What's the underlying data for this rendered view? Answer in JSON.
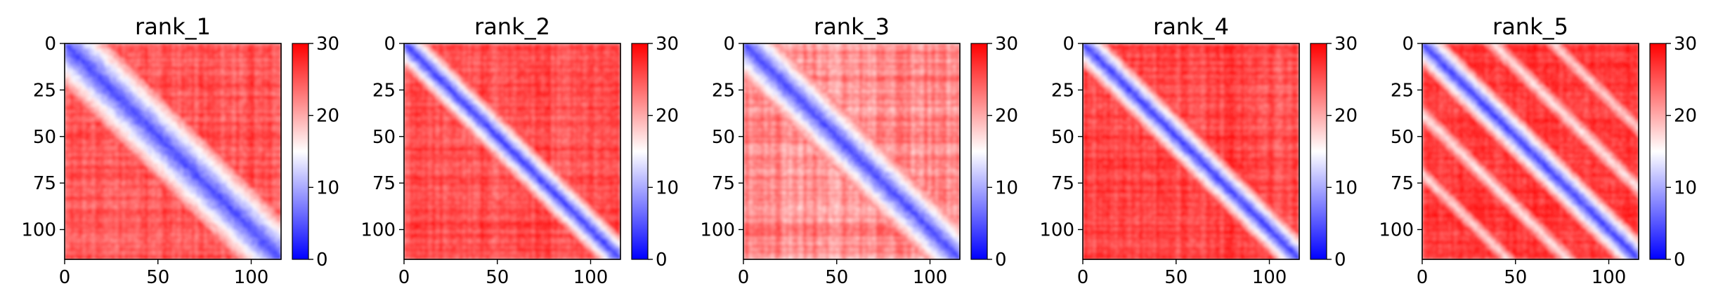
{
  "chart_data": [
    {
      "type": "heatmap",
      "title": "rank_1",
      "pattern": "wide-diagonal",
      "xlim": [
        0,
        116
      ],
      "ylim": [
        116,
        0
      ],
      "xticks": [
        0,
        50,
        100
      ],
      "xtick_labels": [
        "0",
        "50",
        "100"
      ],
      "yticks": [
        0,
        25,
        50,
        75,
        100
      ],
      "ytick_labels": [
        "0",
        "25",
        "50",
        "75",
        "100"
      ],
      "colorbar": {
        "range": [
          0,
          30
        ],
        "ticks": [
          0,
          10,
          20,
          30
        ],
        "tick_labels": [
          "0",
          "10",
          "20",
          "30"
        ],
        "colormap": "bwr"
      }
    },
    {
      "type": "heatmap",
      "title": "rank_2",
      "pattern": "narrow-diagonal",
      "xlim": [
        0,
        116
      ],
      "ylim": [
        116,
        0
      ],
      "xticks": [
        0,
        50,
        100
      ],
      "xtick_labels": [
        "0",
        "50",
        "100"
      ],
      "yticks": [
        0,
        25,
        50,
        75,
        100
      ],
      "ytick_labels": [
        "0",
        "25",
        "50",
        "75",
        "100"
      ],
      "colorbar": {
        "range": [
          0,
          30
        ],
        "ticks": [
          0,
          10,
          20,
          30
        ],
        "tick_labels": [
          "0",
          "10",
          "20",
          "30"
        ],
        "colormap": "bwr"
      }
    },
    {
      "type": "heatmap",
      "title": "rank_3",
      "pattern": "medium-diagonal",
      "xlim": [
        0,
        116
      ],
      "ylim": [
        116,
        0
      ],
      "xticks": [
        0,
        50,
        100
      ],
      "xtick_labels": [
        "0",
        "50",
        "100"
      ],
      "yticks": [
        0,
        25,
        50,
        75,
        100
      ],
      "ytick_labels": [
        "0",
        "25",
        "50",
        "75",
        "100"
      ],
      "colorbar": {
        "range": [
          0,
          30
        ],
        "ticks": [
          0,
          10,
          20,
          30
        ],
        "tick_labels": [
          "0",
          "10",
          "20",
          "30"
        ],
        "colormap": "bwr"
      }
    },
    {
      "type": "heatmap",
      "title": "rank_4",
      "pattern": "narrow-diagonal",
      "xlim": [
        0,
        116
      ],
      "ylim": [
        116,
        0
      ],
      "xticks": [
        0,
        50,
        100
      ],
      "xtick_labels": [
        "0",
        "50",
        "100"
      ],
      "yticks": [
        0,
        25,
        50,
        75,
        100
      ],
      "ytick_labels": [
        "0",
        "25",
        "50",
        "75",
        "100"
      ],
      "colorbar": {
        "range": [
          0,
          30
        ],
        "ticks": [
          0,
          10,
          20,
          30
        ],
        "tick_labels": [
          "0",
          "10",
          "20",
          "30"
        ],
        "colormap": "bwr"
      }
    },
    {
      "type": "heatmap",
      "title": "rank_5",
      "pattern": "diagonal-with-parallel-bands",
      "xlim": [
        0,
        116
      ],
      "ylim": [
        116,
        0
      ],
      "xticks": [
        0,
        50,
        100
      ],
      "xtick_labels": [
        "0",
        "50",
        "100"
      ],
      "yticks": [
        0,
        25,
        50,
        75,
        100
      ],
      "ytick_labels": [
        "0",
        "25",
        "50",
        "75",
        "100"
      ],
      "colorbar": {
        "range": [
          0,
          30
        ],
        "ticks": [
          0,
          10,
          20,
          30
        ],
        "tick_labels": [
          "0",
          "10",
          "20",
          "30"
        ],
        "colormap": "bwr"
      }
    }
  ]
}
